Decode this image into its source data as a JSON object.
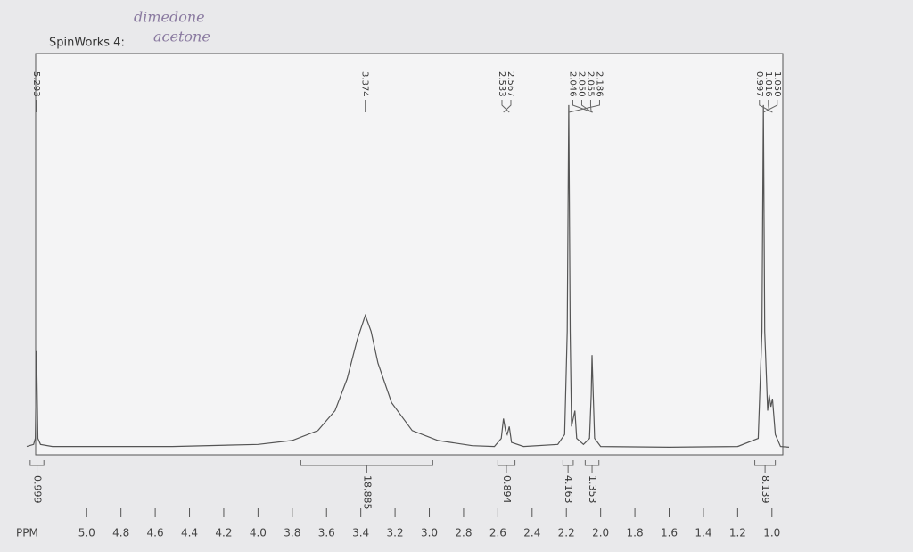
{
  "chart_data": {
    "type": "line",
    "title": "SpinWorks 4:",
    "annotations": [
      "dimedone",
      "acetone"
    ],
    "x_label": "PPM",
    "color": "#555555",
    "xlim": [
      5.35,
      0.9
    ],
    "ylim": [
      0,
      100
    ],
    "xticks": [
      {
        "value": 5,
        "label": "5.0"
      },
      4.8,
      4.6,
      4.4,
      4.2,
      {
        "value": 4,
        "label": "4.0"
      },
      3.8,
      3.6,
      3.4,
      3.2,
      {
        "value": 3,
        "label": "3.0"
      },
      2.8,
      2.6,
      2.4,
      2.2,
      {
        "value": 2,
        "label": "2.0"
      },
      1.8,
      1.6,
      1.4,
      1.2,
      {
        "value": 1,
        "label": "1.0"
      }
    ],
    "x": [
      5.35,
      5.31,
      5.3,
      5.293,
      5.285,
      5.27,
      5.2,
      4.5,
      4.0,
      3.8,
      3.65,
      3.55,
      3.48,
      3.42,
      3.374,
      3.34,
      3.3,
      3.22,
      3.1,
      2.95,
      2.75,
      2.62,
      2.58,
      2.567,
      2.555,
      2.545,
      2.533,
      2.52,
      2.45,
      2.25,
      2.21,
      2.195,
      2.186,
      2.178,
      2.17,
      2.15,
      2.14,
      2.1,
      2.065,
      2.055,
      2.05,
      2.046,
      2.035,
      2.0,
      1.6,
      1.2,
      1.08,
      1.058,
      1.05,
      1.042,
      1.025,
      1.016,
      1.006,
      0.997,
      0.98,
      0.95,
      0.9
    ],
    "values": [
      1,
      1.5,
      3,
      25,
      3,
      1.5,
      1,
      1,
      1.5,
      2.5,
      5,
      10,
      18,
      28,
      34,
      30,
      22,
      12,
      5,
      2.5,
      1.2,
      1,
      3,
      8,
      5,
      4,
      6,
      2,
      1,
      1.5,
      4,
      30,
      87,
      30,
      6,
      10,
      3,
      1.5,
      3,
      14,
      24,
      18,
      3,
      1,
      0.8,
      1,
      3,
      30,
      87,
      30,
      10,
      14,
      11,
      13,
      4,
      1,
      0.8
    ],
    "peak_labels": [
      {
        "value": 5.293,
        "label": "5.293"
      },
      {
        "value": 3.374,
        "label": "3.374"
      },
      {
        "value": 2.533,
        "label": "2.533"
      },
      {
        "value": 2.567,
        "label": "2.567"
      },
      {
        "value": 2.046,
        "label": "2.046"
      },
      {
        "value": 2.05,
        "label": "2.050"
      },
      {
        "value": 2.055,
        "label": "2.055"
      },
      {
        "value": 2.186,
        "label": "2.186"
      },
      {
        "value": 0.997,
        "label": "0.997"
      },
      {
        "value": 1.016,
        "label": "1.016"
      },
      {
        "value": 1.05,
        "label": "1.050"
      }
    ],
    "integrals": [
      {
        "range": [
          5.33,
          5.25
        ],
        "value": 0.999
      },
      {
        "range": [
          3.75,
          2.98
        ],
        "value": 18.885
      },
      {
        "range": [
          2.6,
          2.5
        ],
        "value": 0.894
      },
      {
        "range": [
          2.22,
          2.16
        ],
        "value": 4.163
      },
      {
        "range": [
          2.09,
          2.01
        ],
        "value": 1.353
      },
      {
        "range": [
          1.1,
          0.98
        ],
        "value": 8.139
      }
    ]
  }
}
